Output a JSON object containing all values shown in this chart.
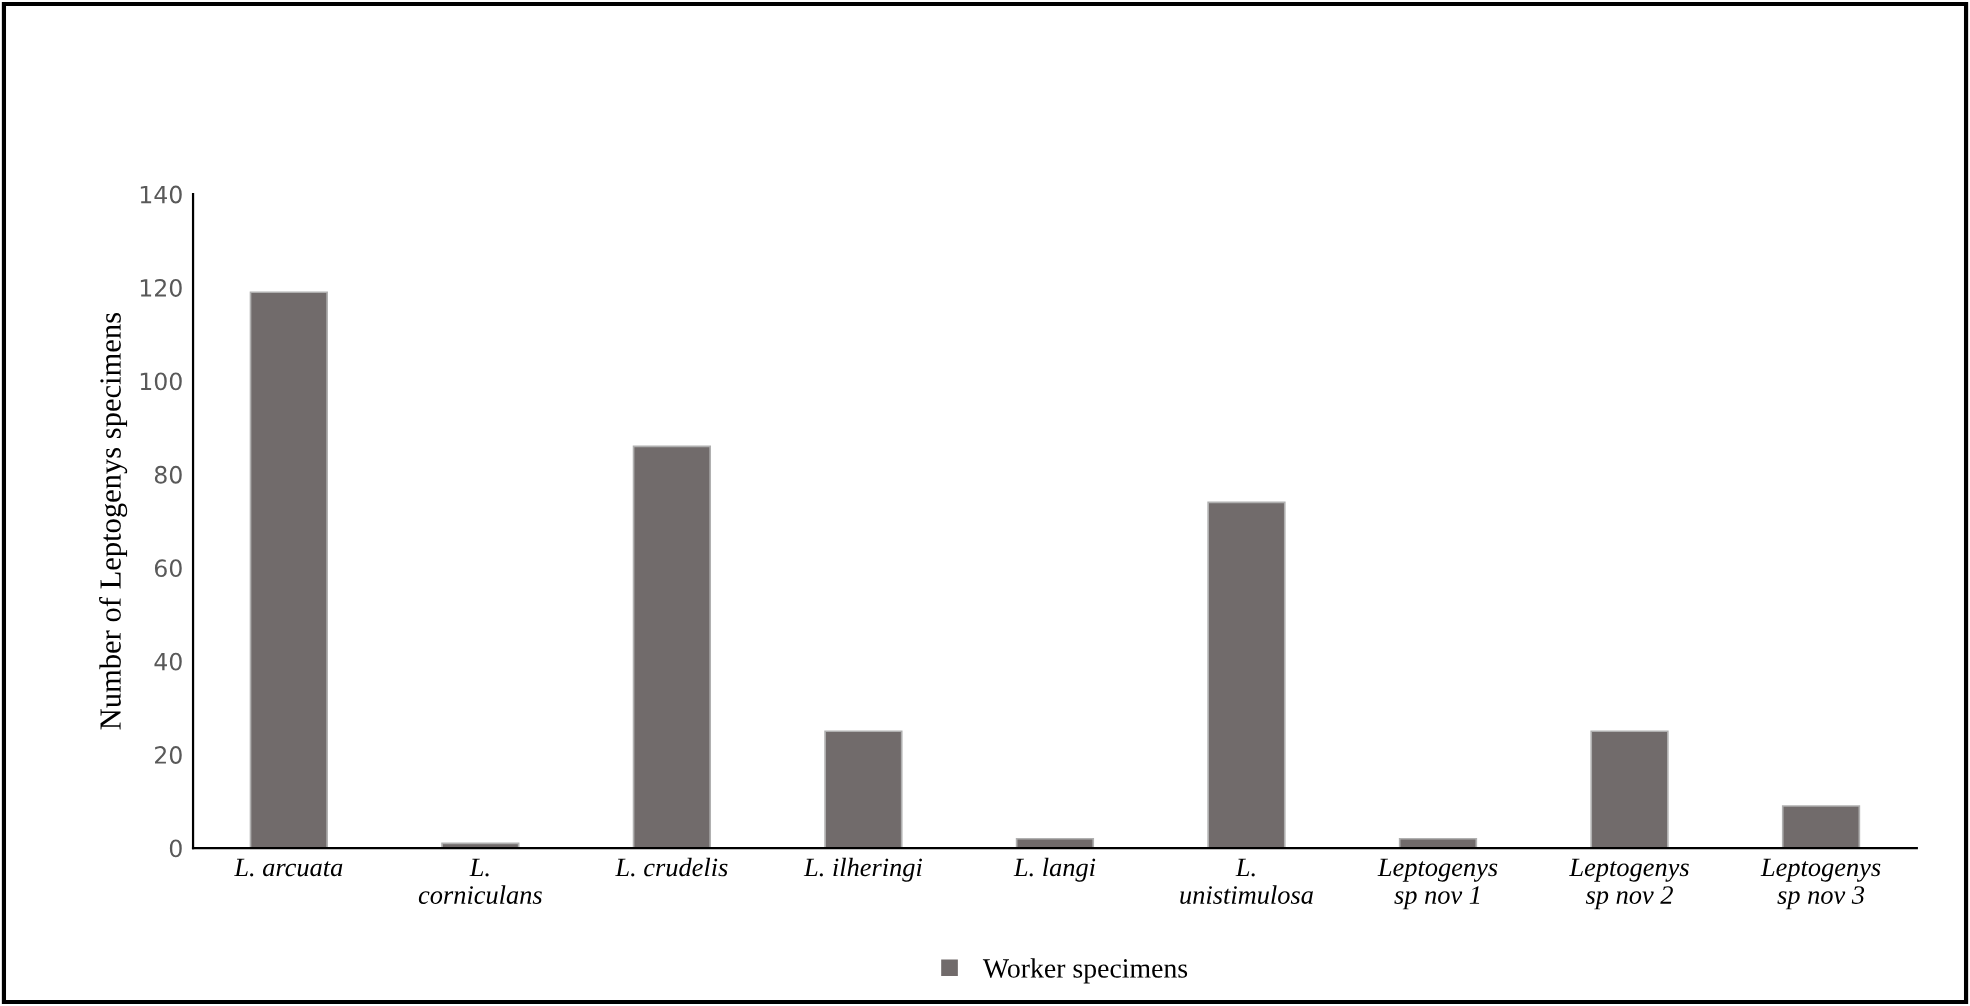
{
  "chart_data": {
    "type": "bar",
    "categories": [
      "L. arcuata",
      "L.\ncorniculans",
      "L. crudelis",
      "L. ilheringi",
      "L. langi",
      "L.\nunistimulosa",
      "Leptogenys\nsp nov 1",
      "Leptogenys\nsp nov 2",
      "Leptogenys\nsp nov 3"
    ],
    "series": [
      {
        "name": "Worker specimens",
        "color": "#716b6b",
        "values": [
          119,
          1,
          86,
          25,
          2,
          74,
          2,
          25,
          9
        ]
      }
    ],
    "ylabel": "Number of Leptogenys specimens",
    "ylim": [
      0,
      140
    ],
    "yticks": [
      0,
      20,
      40,
      60,
      80,
      100,
      120,
      140
    ],
    "legend": "bottom",
    "grid": false
  }
}
